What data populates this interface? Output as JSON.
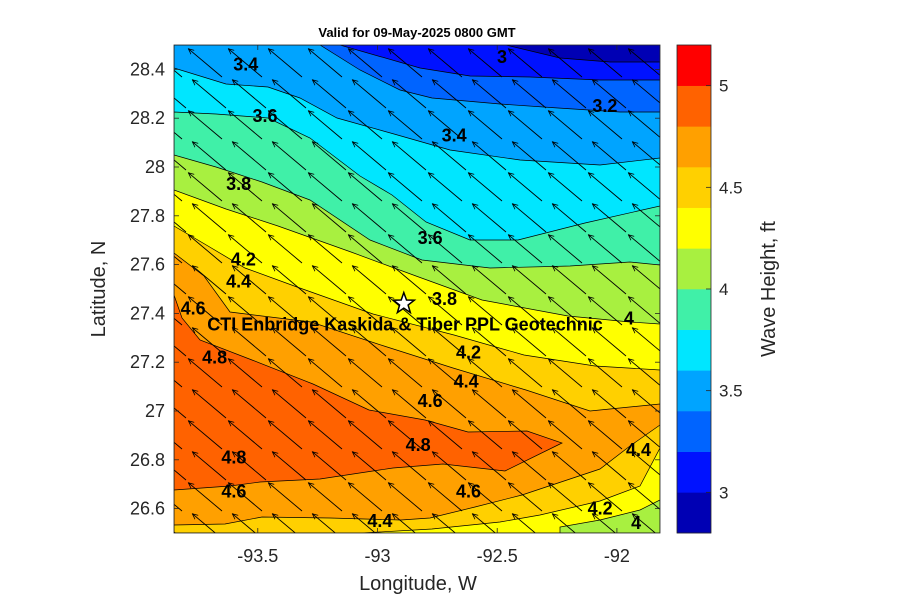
{
  "chart_data": {
    "type": "heatmap",
    "title": "Valid for 09-May-2025 0800 GMT",
    "xlabel": "Longitude, W",
    "ylabel": "Latitude, N",
    "colorbar_label": "Wave Height, ft",
    "xlim": [
      -93.85,
      -91.82
    ],
    "ylim": [
      26.5,
      28.5
    ],
    "x_ticks": [
      -93.5,
      -93,
      -92.5,
      -92
    ],
    "x_tick_labels": [
      "-93.5",
      "-93",
      "-92.5",
      "-92"
    ],
    "y_ticks": [
      26.6,
      26.8,
      27,
      27.2,
      27.4,
      27.6,
      27.8,
      28,
      28.2,
      28.4
    ],
    "y_tick_labels": [
      "26.6",
      "26.8",
      "27",
      "27.2",
      "27.4",
      "27.6",
      "27.8",
      "28",
      "28.2",
      "28.4"
    ],
    "color_levels": [
      2.8,
      3,
      3.2,
      3.4,
      3.6,
      3.8,
      4,
      4.2,
      4.4,
      4.6,
      4.8,
      5,
      5.2
    ],
    "colorbar_ticks": [
      3,
      3.5,
      4,
      4.5,
      5
    ],
    "colorbar_tick_labels": [
      "3",
      "3.5",
      "4",
      "4.5",
      "5"
    ],
    "colors": [
      "#0000b4",
      "#0012ff",
      "#0064ff",
      "#00a4ff",
      "#00e6ff",
      "#40f0a8",
      "#a8f040",
      "#ffff00",
      "#ffd000",
      "#ffa000",
      "#ff6200",
      "#ff0000",
      "#b40000"
    ],
    "contour_labels": [
      {
        "text": "3",
        "lon": -92.48,
        "lat": 28.45
      },
      {
        "text": "3.4",
        "lon": -93.55,
        "lat": 28.42
      },
      {
        "text": "3.2",
        "lon": -92.05,
        "lat": 28.25
      },
      {
        "text": "3.6",
        "lon": -93.47,
        "lat": 28.21
      },
      {
        "text": "3.4",
        "lon": -92.68,
        "lat": 28.13
      },
      {
        "text": "3.8",
        "lon": -93.58,
        "lat": 27.93
      },
      {
        "text": "3.6",
        "lon": -92.78,
        "lat": 27.71
      },
      {
        "text": "4.2",
        "lon": -93.56,
        "lat": 27.62
      },
      {
        "text": "4.4",
        "lon": -93.58,
        "lat": 27.53
      },
      {
        "text": "3.8",
        "lon": -92.72,
        "lat": 27.46
      },
      {
        "text": "4.6",
        "lon": -93.77,
        "lat": 27.42
      },
      {
        "text": "4",
        "lon": -91.95,
        "lat": 27.38
      },
      {
        "text": "4.8",
        "lon": -93.68,
        "lat": 27.22
      },
      {
        "text": "4.2",
        "lon": -92.62,
        "lat": 27.24
      },
      {
        "text": "4.4",
        "lon": -92.63,
        "lat": 27.12
      },
      {
        "text": "4.6",
        "lon": -92.78,
        "lat": 27.04
      },
      {
        "text": "4.8",
        "lon": -92.83,
        "lat": 26.86
      },
      {
        "text": "4.4",
        "lon": -91.91,
        "lat": 26.84
      },
      {
        "text": "4.8",
        "lon": -93.6,
        "lat": 26.81
      },
      {
        "text": "4.6",
        "lon": -93.6,
        "lat": 26.67
      },
      {
        "text": "4.6",
        "lon": -92.62,
        "lat": 26.67
      },
      {
        "text": "4.2",
        "lon": -92.07,
        "lat": 26.6
      },
      {
        "text": "4.4",
        "lon": -92.99,
        "lat": 26.55
      },
      {
        "text": "4",
        "lon": -91.92,
        "lat": 26.54
      }
    ],
    "station": {
      "name": "CTI Enbridge  Kaskida & Tiber PPL Geotechnic",
      "lon": -92.89,
      "lat": 27.44
    },
    "wave_direction": "arrows point toward the northwest across the whole domain",
    "grid": false,
    "legend": "colorbar-right"
  }
}
